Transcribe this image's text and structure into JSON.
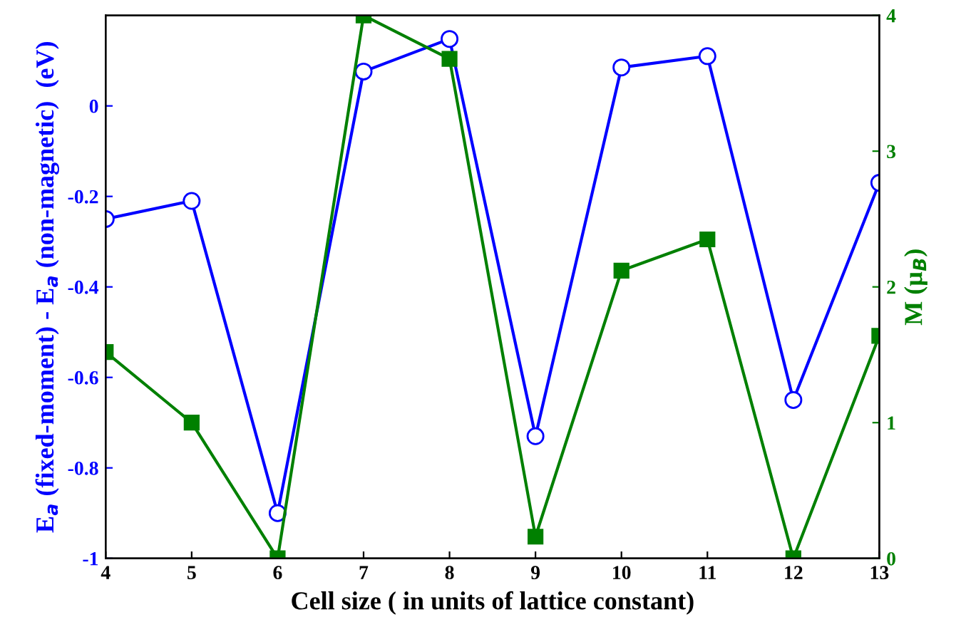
{
  "chart_data": {
    "type": "line",
    "xlabel": "Cell size ( in units of lattice constant)",
    "ylabel": "E$_{a}$ (fixed-moment) - E$_{a}$ (non-magnetic)  (eV)",
    "y2label": "M (μ$_{B}$)",
    "x": [
      4,
      5,
      6,
      7,
      8,
      9,
      10,
      11,
      12,
      13
    ],
    "series": [
      {
        "color": "#0000ff",
        "marker": "circle",
        "values": [
          -0.25,
          -0.21,
          -0.9,
          0.076,
          0.148,
          -0.73,
          0.085,
          0.11,
          -0.65,
          -0.17
        ]
      },
      {
        "color": "#008000",
        "marker": "square",
        "axis": "y2",
        "values": [
          1.52,
          1.0,
          0,
          4,
          3.68,
          0.16,
          2.12,
          2.35,
          0,
          1.64
        ]
      }
    ],
    "xlim": [
      4,
      13
    ],
    "xticks": [
      4,
      5,
      6,
      7,
      8,
      9,
      10,
      11,
      12,
      13
    ],
    "ylim": [
      -1,
      0.2
    ],
    "yticks": [
      -1,
      -0.8,
      -0.6,
      -0.4,
      -0.2,
      0
    ],
    "y2lim": [
      0,
      4
    ],
    "y2ticks": [
      0,
      1,
      2,
      3,
      4
    ],
    "grid": false,
    "legend": false
  }
}
